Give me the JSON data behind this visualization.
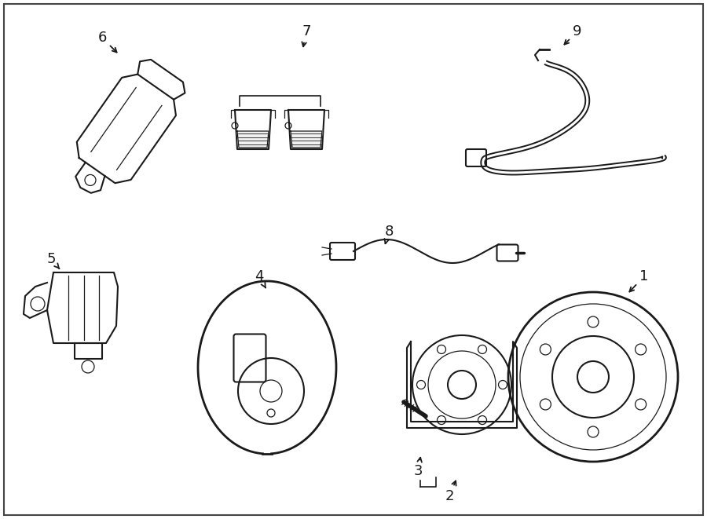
{
  "bg_color": "#ffffff",
  "line_color": "#1a1a1a",
  "lw_main": 1.5,
  "lw_thin": 0.9,
  "lw_thick": 2.0,
  "label_fontsize": 13
}
